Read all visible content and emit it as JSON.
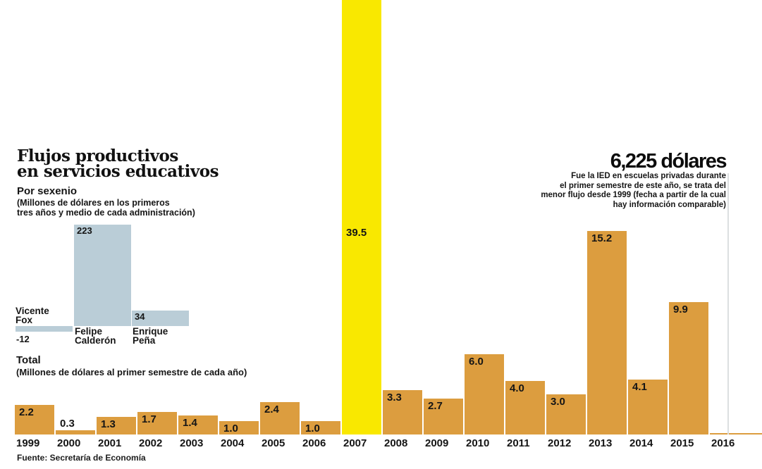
{
  "title": {
    "line1": "Flujos productivos",
    "line2": "en servicios educativos"
  },
  "sexenio": {
    "heading": "Por sexenio",
    "subtitle_lines": [
      "(Millones de dólares en los primeros",
      "tres años y medio de cada administración)"
    ]
  },
  "total": {
    "heading": "Total",
    "subtitle": "(Millones de dólares al primer semestre de cada año)"
  },
  "callout": {
    "headline": "6,225 dólares",
    "lines": [
      "Fue la IED en escuelas privadas durante",
      "el primer semestre de este año, se trata del",
      "menor flujo desde 1999 (fecha a partir de la cual",
      "hay información comparable)"
    ]
  },
  "source": "Fuente: Secretaría de Economía",
  "colors": {
    "bar_orange": "#dc9d3f",
    "bar_highlight_yellow": "#f9e800",
    "inset_bar_blue": "#bacdd7",
    "text_black": "#151515",
    "connector_gray": "#dcdfe1"
  },
  "chart_data": [
    {
      "id": "por-sexenio",
      "type": "bar",
      "title": "Por sexenio",
      "subtitle": "(Millones de dólares en los primeros tres años y medio de cada administración)",
      "categories": [
        "Vicente Fox",
        "Felipe Calderón",
        "Enrique Peña"
      ],
      "values": [
        -12,
        223,
        34
      ],
      "value_labels": [
        "-12",
        "223",
        "34"
      ],
      "unit": "millones de dólares",
      "bar_color": "#bacdd7",
      "grid": false
    },
    {
      "id": "total-anual",
      "type": "bar",
      "title": "Total",
      "subtitle": "(Millones de dólares al primer semestre de cada año)",
      "categories": [
        "1999",
        "2000",
        "2001",
        "2002",
        "2003",
        "2004",
        "2005",
        "2006",
        "2007",
        "2008",
        "2009",
        "2010",
        "2011",
        "2012",
        "2013",
        "2014",
        "2015",
        "2016"
      ],
      "values": [
        2.2,
        0.3,
        1.3,
        1.7,
        1.4,
        1.0,
        2.4,
        1.0,
        39.5,
        3.3,
        2.7,
        6.0,
        4.0,
        3.0,
        15.2,
        4.1,
        9.9,
        0.006
      ],
      "value_labels": [
        "2.2",
        "0.3",
        "1.3",
        "1.7",
        "1.4",
        "1.0",
        "2.4",
        "1.0",
        "39.5",
        "3.3",
        "2.7",
        "6.0",
        "4.0",
        "3.0",
        "15.2",
        "4.1",
        "9.9",
        ""
      ],
      "highlight_index": 8,
      "highlight_category": "2007",
      "unit": "millones de dólares",
      "bar_color": "#dc9d3f",
      "highlight_color": "#f9e800",
      "grid": false
    }
  ]
}
